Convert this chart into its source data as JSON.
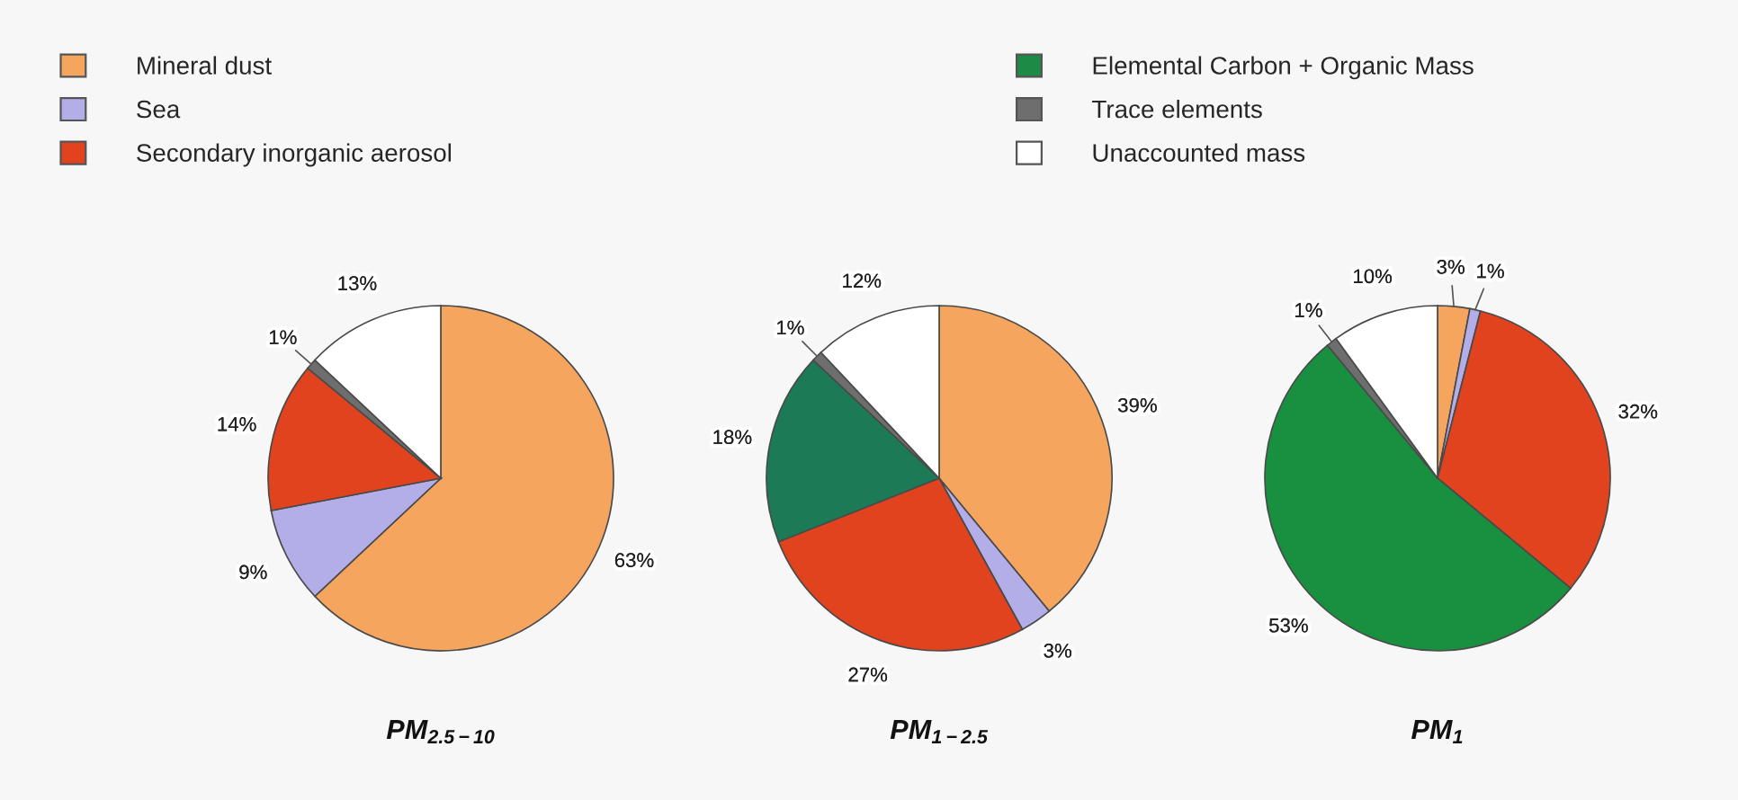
{
  "chart_data": [
    {
      "type": "pie",
      "title": "PM$_{2.5−10}$",
      "categories": [
        "Mineral dust",
        "Sea",
        "Secondary inorganic aerosol",
        "Elemental Carbon + Organic Mass",
        "Trace elements",
        "Unaccounted mass"
      ],
      "values": [
        63,
        9,
        14,
        null,
        1,
        13
      ],
      "colors": [
        "#f5a55e",
        "#b3aee8",
        "#e2431f",
        "#1d8a45",
        "#6e6e6e",
        "#ffffff"
      ],
      "value_labels": [
        "63%",
        "9%",
        "14%",
        null,
        "1%",
        "13%"
      ],
      "legend": "top"
    },
    {
      "type": "pie",
      "title": "PM$_{1−2.5}$",
      "categories": [
        null,
        null,
        null,
        null,
        null,
        null
      ],
      "values": [
        39,
        3,
        27,
        18,
        1,
        12
      ],
      "colors": [
        "#f5a55e",
        "#b3aee8",
        "#e2431f",
        "#1c7a57",
        "#6e6e6e",
        "#ffffff"
      ],
      "value_labels": [
        "39%",
        "3%",
        "27%",
        "18%",
        "1%",
        "12%"
      ]
    },
    {
      "type": "pie",
      "title": "PM$_{1}$",
      "categories": [
        null,
        null,
        null,
        null,
        null,
        null
      ],
      "values": [
        3,
        1,
        32,
        53,
        1,
        10
      ],
      "colors": [
        "#f5a55e",
        "#b3aee8",
        "#e2431f",
        "#189040",
        "#6e6e6e",
        "#ffffff"
      ],
      "value_labels": [
        "3%",
        "1%",
        "32%",
        "53%",
        "1%",
        "10%"
      ]
    }
  ]
}
